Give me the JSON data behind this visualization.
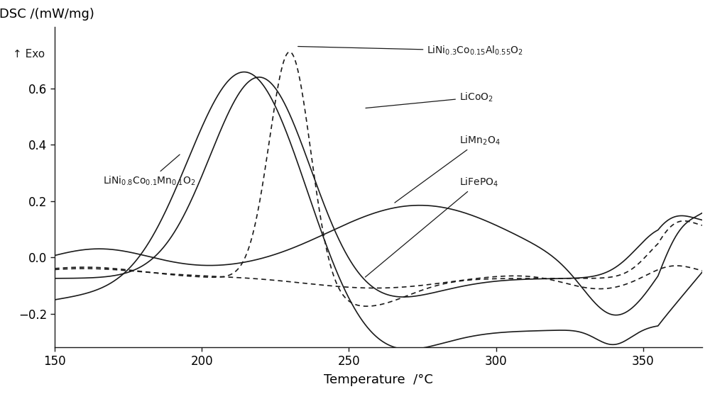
{
  "ylabel": "DSC /(mW/mg)",
  "xlabel": "Temperature  /°C",
  "exo_label": "↑ Exo",
  "xlim": [
    150,
    370
  ],
  "ylim": [
    -0.32,
    0.82
  ],
  "yticks": [
    -0.2,
    0.0,
    0.2,
    0.4,
    0.6
  ],
  "xticks": [
    150,
    200,
    250,
    300,
    350
  ],
  "background_color": "#ffffff",
  "line_color": "#1a1a1a"
}
